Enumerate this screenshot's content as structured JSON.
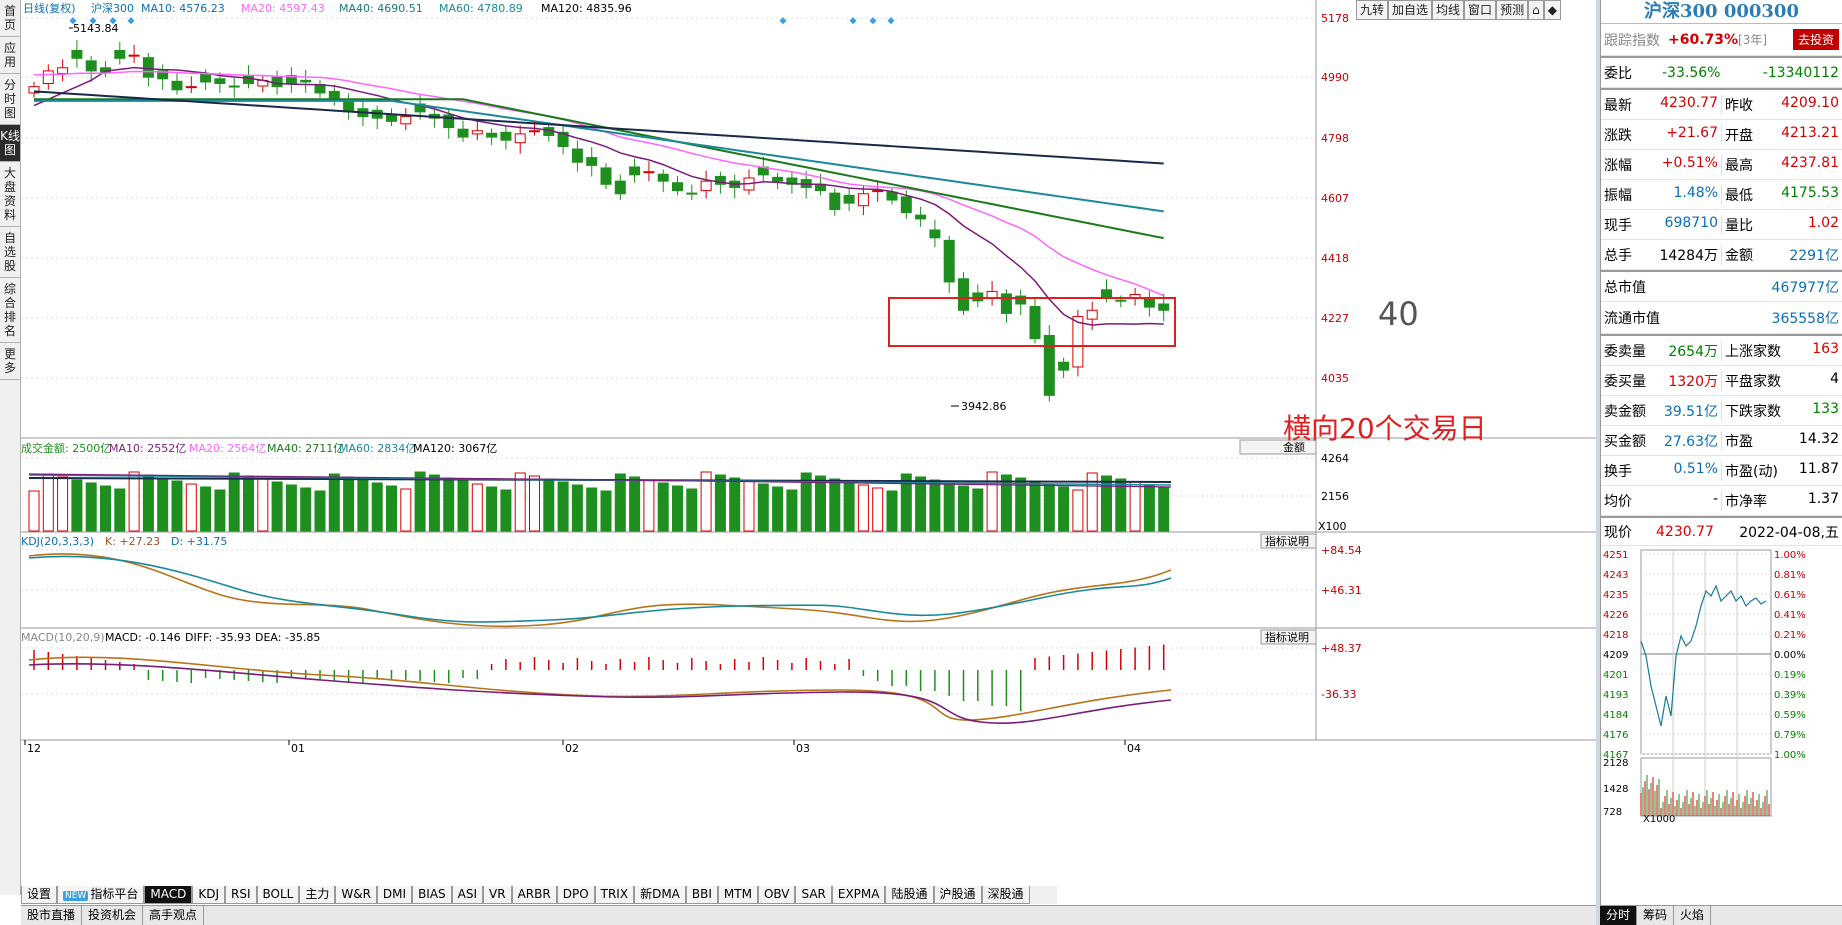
{
  "leftnav": [
    "首页",
    "应用",
    "分时图",
    "K线图",
    "大盘资料",
    "自选股",
    "综合排名",
    "更多"
  ],
  "toolbar": [
    "九转",
    "加自选",
    "均线",
    "窗口",
    "预测",
    "⌂",
    "◆"
  ],
  "main_legend": {
    "type": "日线(复权)",
    "name": "沪深300",
    "ma10": "MA10: 4576.23",
    "ma20": "MA20: 4597.43",
    "ma40": "MA40: 4690.51",
    "ma60": "MA60: 4780.89",
    "ma120": "MA120: 4835.96"
  },
  "price_axis": [
    "5178",
    "4990",
    "4798",
    "4607",
    "4418",
    "4227",
    "4035"
  ],
  "high_label": "5143.84",
  "low_label": "3942.86",
  "annotation": "横向20个交易日",
  "annotation_40": "40",
  "vol_legend": {
    "title": "成交金额: 2500亿",
    "ma10": "MA10: 2552亿",
    "ma20": "MA20: 2564亿",
    "ma40": "MA40: 2711亿",
    "ma60": "MA60: 2834亿",
    "ma120": "MA120: 3067亿"
  },
  "vol_axis": [
    "4264",
    "2156"
  ],
  "vol_unit": "X100",
  "vol_dropdown": "金额",
  "kdj_legend": {
    "title": "KDJ(20,3,3,3)",
    "k": "K: +27.23",
    "d": "D: +31.75"
  },
  "kdj_axis": [
    "+84.54",
    "+46.31"
  ],
  "macd_legend": {
    "title": "MACD(10,20,9)",
    "macd": "MACD: -0.146",
    "diff": "DIFF: -35.93",
    "dea": "DEA: -35.85"
  },
  "macd_axis": [
    "+48.37",
    "-36.33"
  ],
  "indicator_btn": "指标说明",
  "date_axis": [
    "12",
    "01",
    "02",
    "03",
    "04"
  ],
  "bottom_tabs": [
    "设置",
    "指标平台",
    "MACD",
    "KDJ",
    "RSI",
    "BOLL",
    "主力",
    "W&R",
    "DMI",
    "BIAS",
    "ASI",
    "VR",
    "ARBR",
    "DPO",
    "TRIX",
    "新DMA",
    "BBI",
    "MTM",
    "OBV",
    "SAR",
    "EXPMA",
    "陆股通",
    "沪股通",
    "深股通"
  ],
  "new_badge": "NEW",
  "bottom2": [
    "股市直播",
    "投资机会",
    "高手观点"
  ],
  "rp": {
    "title": "沪深300 000300",
    "track_label": "跟踪指数",
    "track_val": "+60.73%",
    "track_period": "[3年]",
    "track_btn": "去投资",
    "wb_label": "委比",
    "wb_pct": "-33.56%",
    "wb_val": "-13340112",
    "rows": [
      [
        "最新",
        "4230.77",
        "昨收",
        "4209.10"
      ],
      [
        "涨跌",
        "+21.67",
        "开盘",
        "4213.21"
      ],
      [
        "涨幅",
        "+0.51%",
        "最高",
        "4237.81"
      ],
      [
        "振幅",
        "1.48%",
        "最低",
        "4175.53"
      ],
      [
        "现手",
        "698710",
        "量比",
        "1.02"
      ],
      [
        "总手",
        "14284万",
        "金额",
        "2291亿"
      ]
    ],
    "zsz_label": "总市值",
    "zsz": "467977亿",
    "ltsz_label": "流通市值",
    "ltsz": "365558亿",
    "rows2": [
      [
        "委卖量",
        "2654万",
        "上涨家数",
        "163"
      ],
      [
        "委买量",
        "1320万",
        "平盘家数",
        "4"
      ],
      [
        "卖金额",
        "39.51亿",
        "下跌家数",
        "133"
      ],
      [
        "买金额",
        "27.63亿",
        "市盈",
        "14.32"
      ],
      [
        "换手",
        "0.51%",
        "市盈(动)",
        "11.87"
      ],
      [
        "均价",
        "-",
        "市净率",
        "1.37"
      ]
    ],
    "now_label": "现价",
    "now_val": "4230.77",
    "date": "2022-04-08,五",
    "mini_left": [
      "4251",
      "4243",
      "4235",
      "4226",
      "4218",
      "4209",
      "4201",
      "4193",
      "4184",
      "4176",
      "4167",
      "2128",
      "1428",
      "728"
    ],
    "mini_right": [
      "1.00%",
      "0.81%",
      "0.61%",
      "0.41%",
      "0.21%",
      "0.00%",
      "0.19%",
      "0.39%",
      "0.59%",
      "0.79%",
      "1.00%"
    ],
    "mini_unit": "X1000",
    "bottom_tabs": [
      "分时",
      "筹码",
      "火焰"
    ]
  },
  "colors": {
    "up": "#d60000",
    "down": "#1e8f1e",
    "ma10": "#7a1c7a",
    "ma20": "#ff66ff",
    "ma40": "#1a7a1a",
    "ma60": "#1a8a9a",
    "ma120": "#1a2a4a"
  }
}
